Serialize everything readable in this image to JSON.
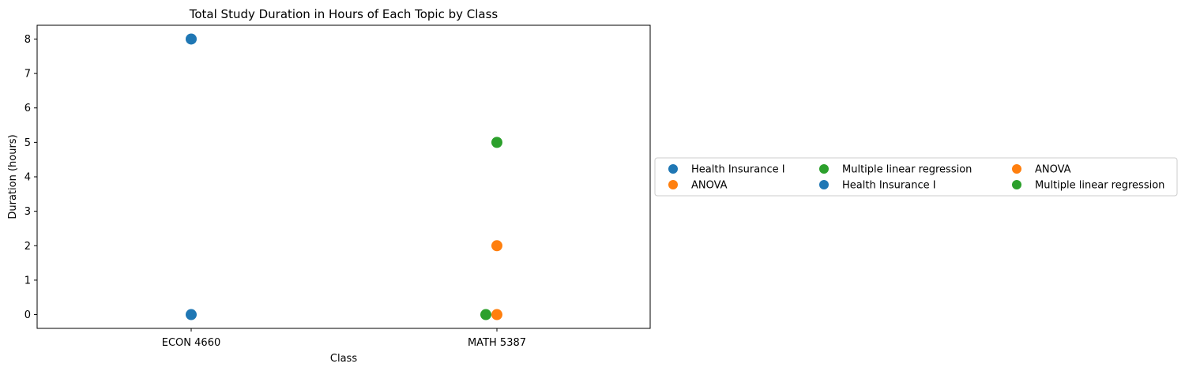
{
  "chart_data": {
    "type": "scatter",
    "title": "Total Study Duration in Hours of Each Topic by Class",
    "xlabel": "Class",
    "ylabel": "Duration (hours)",
    "categories": [
      "ECON 4660",
      "MATH 5387"
    ],
    "ylim": [
      -0.4,
      8.4
    ],
    "yticks": [
      0,
      1,
      2,
      3,
      4,
      5,
      6,
      7,
      8
    ],
    "grid": false,
    "legend_position": "center-left outside right, 3 columns",
    "series": [
      {
        "name": "Health Insurance I",
        "color": "#1f77b4",
        "points": [
          {
            "x": "ECON 4660",
            "y": 8
          }
        ]
      },
      {
        "name": "ANOVA",
        "color": "#ff7f0e",
        "points": [
          {
            "x": "MATH 5387",
            "y": 2
          }
        ]
      },
      {
        "name": "Multiple linear regression",
        "color": "#2ca02c",
        "points": [
          {
            "x": "MATH 5387",
            "y": 5
          }
        ]
      },
      {
        "name": "Health Insurance I",
        "color": "#1f77b4",
        "points": [
          {
            "x": "ECON 4660",
            "y": 0
          }
        ]
      },
      {
        "name": "ANOVA",
        "color": "#ff7f0e",
        "points": [
          {
            "x": "MATH 5387",
            "y": 0
          }
        ]
      },
      {
        "name": "Multiple linear regression",
        "color": "#2ca02c",
        "points": [
          {
            "x": "MATH 5387",
            "y": 0
          }
        ]
      }
    ]
  }
}
